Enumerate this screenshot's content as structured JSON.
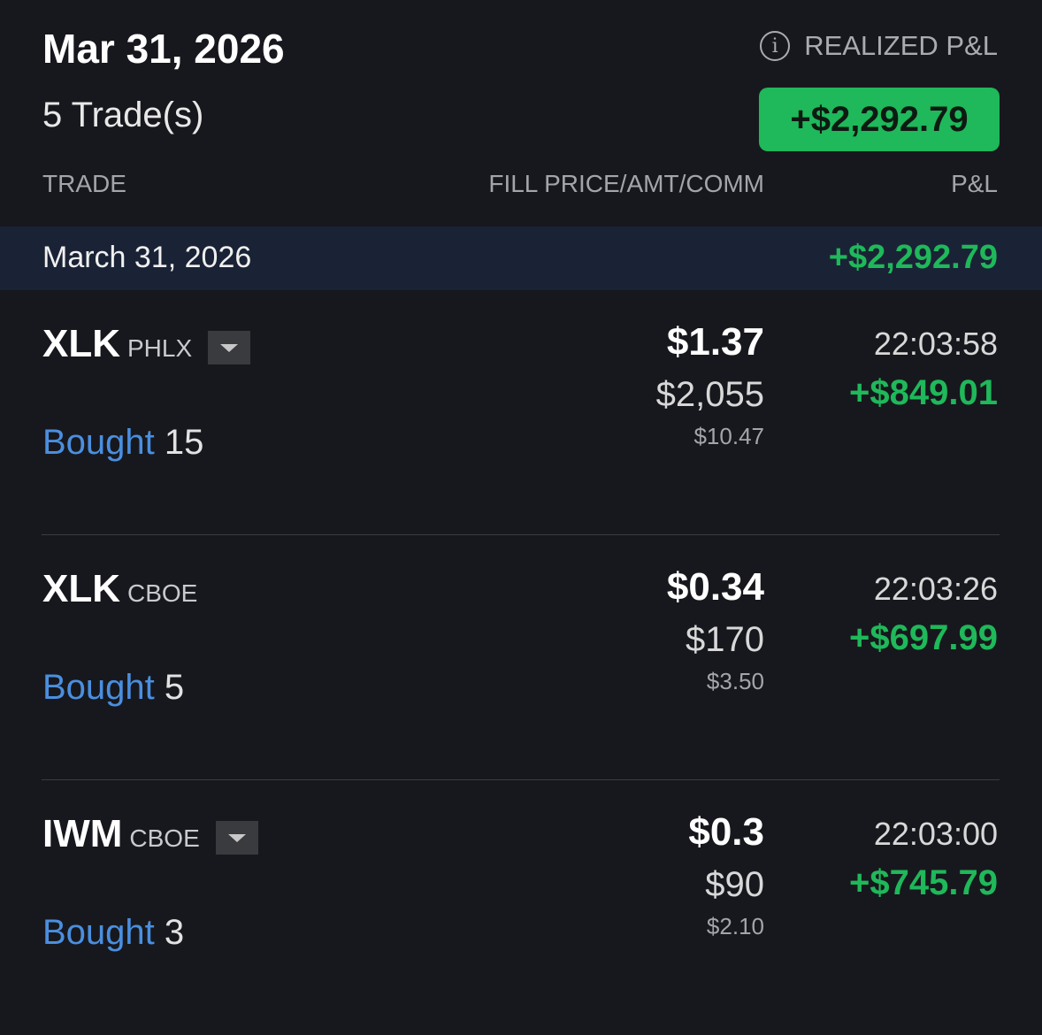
{
  "header": {
    "date": "Mar 31, 2026",
    "trade_count": "5 Trade(s)",
    "realized_label": "REALIZED P&L",
    "realized_total": "+$2,292.79",
    "info_icon": "i"
  },
  "columns": {
    "trade": "TRADE",
    "fill": "FILL PRICE/AMT/COMM",
    "pnl": "P&L"
  },
  "day": {
    "label": "March 31, 2026",
    "pnl": "+$2,292.79"
  },
  "colors": {
    "background": "#17181d",
    "positive": "#1fb85a",
    "bought": "#4a8fe0",
    "day_band": "#1a2335"
  },
  "trades": [
    {
      "symbol": "XLK",
      "exchange": "PHLX",
      "has_dropdown": true,
      "side": "Bought",
      "qty": "15",
      "price": "$1.37",
      "amount": "$2,055",
      "commission": "$10.47",
      "time": "22:03:58",
      "pnl": "+$849.01"
    },
    {
      "symbol": "XLK",
      "exchange": "CBOE",
      "has_dropdown": false,
      "side": "Bought",
      "qty": "5",
      "price": "$0.34",
      "amount": "$170",
      "commission": "$3.50",
      "time": "22:03:26",
      "pnl": "+$697.99"
    },
    {
      "symbol": "IWM",
      "exchange": "CBOE",
      "has_dropdown": true,
      "side": "Bought",
      "qty": "3",
      "price": "$0.3",
      "amount": "$90",
      "commission": "$2.10",
      "time": "22:03:00",
      "pnl": "+$745.79"
    }
  ]
}
